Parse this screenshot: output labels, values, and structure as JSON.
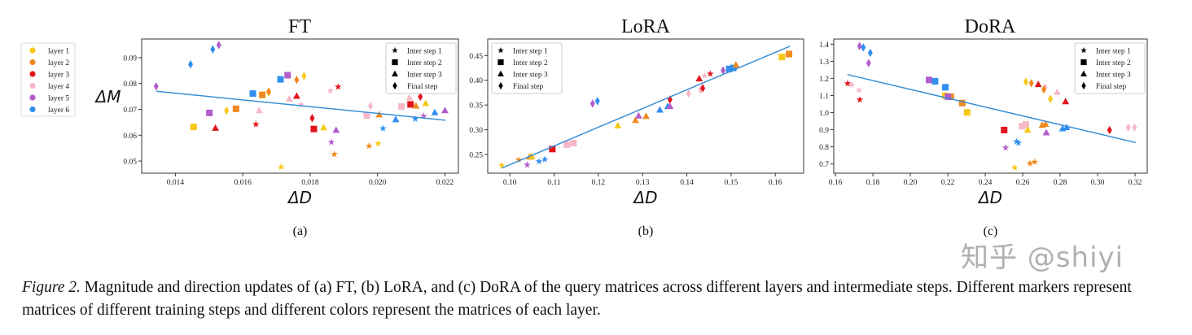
{
  "layer_legend": {
    "entries": [
      {
        "label": "layer 1",
        "color": "#f7c815"
      },
      {
        "label": "layer 2",
        "color": "#f08a1e"
      },
      {
        "label": "layer 3",
        "color": "#e0141c"
      },
      {
        "label": "layer 4",
        "color": "#f8b8c8"
      },
      {
        "label": "layer 5",
        "color": "#b35ccc"
      },
      {
        "label": "layer 6",
        "color": "#2f8ff0"
      }
    ]
  },
  "step_legend": {
    "entries": [
      {
        "label": "Inter step 1",
        "marker": "star"
      },
      {
        "label": "Inter step 2",
        "marker": "square"
      },
      {
        "label": "Inter step 3",
        "marker": "triangle"
      },
      {
        "label": "Final step",
        "marker": "diamond"
      }
    ]
  },
  "fit_line_color": "#3a8fd6",
  "chart_data": [
    {
      "type": "scatter",
      "title": "FT",
      "xlabel": "ΔD",
      "ylabel": "ΔM",
      "panel_label": "(a)",
      "xlim": [
        0.013,
        0.0224
      ],
      "ylim": [
        0.0453,
        0.0972
      ],
      "xticks": [
        "0.014",
        "0.016",
        "0.018",
        "0.020",
        "0.022"
      ],
      "yticks": [
        "0.05",
        "0.06",
        "0.07",
        "0.08",
        "0.09"
      ],
      "legend_placement": "top-right",
      "fit_line": [
        [
          0.01343,
          0.077
        ],
        [
          0.02202,
          0.0658
        ]
      ],
      "points": [
        [
          5,
          4,
          0.01343,
          0.0789
        ],
        [
          6,
          4,
          0.01445,
          0.0874
        ],
        [
          6,
          4,
          0.01511,
          0.0932
        ],
        [
          5,
          4,
          0.01529,
          0.0949
        ],
        [
          1,
          2,
          0.01454,
          0.0632
        ],
        [
          3,
          3,
          0.01519,
          0.0627
        ],
        [
          5,
          2,
          0.01501,
          0.0686
        ],
        [
          1,
          4,
          0.01552,
          0.0695
        ],
        [
          2,
          2,
          0.0158,
          0.0702
        ],
        [
          4,
          3,
          0.01649,
          0.0695
        ],
        [
          3,
          1,
          0.01639,
          0.0642
        ],
        [
          6,
          2,
          0.0163,
          0.0761
        ],
        [
          2,
          2,
          0.01658,
          0.0756
        ],
        [
          1,
          4,
          0.01677,
          0.0766
        ],
        [
          2,
          4,
          0.01677,
          0.0769
        ],
        [
          6,
          2,
          0.01712,
          0.0816
        ],
        [
          5,
          2,
          0.01733,
          0.0832
        ],
        [
          1,
          1,
          0.01714,
          0.0477
        ],
        [
          4,
          3,
          0.01738,
          0.074
        ],
        [
          2,
          4,
          0.0176,
          0.0814
        ],
        [
          1,
          4,
          0.01782,
          0.0829
        ],
        [
          3,
          3,
          0.0176,
          0.0751
        ],
        [
          4,
          1,
          0.01773,
          0.0718
        ],
        [
          3,
          4,
          0.01806,
          0.0666
        ],
        [
          3,
          2,
          0.01811,
          0.0624
        ],
        [
          1,
          3,
          0.0184,
          0.0629
        ],
        [
          5,
          3,
          0.01877,
          0.0619
        ],
        [
          5,
          1,
          0.01863,
          0.0573
        ],
        [
          2,
          1,
          0.01872,
          0.0526
        ],
        [
          4,
          1,
          0.0186,
          0.0772
        ],
        [
          3,
          1,
          0.01883,
          0.0787
        ],
        [
          4,
          2,
          0.01968,
          0.0676
        ],
        [
          4,
          4,
          0.01979,
          0.0713
        ],
        [
          2,
          1,
          0.01975,
          0.0558
        ],
        [
          1,
          1,
          0.02002,
          0.0568
        ],
        [
          2,
          3,
          0.02005,
          0.0679
        ],
        [
          6,
          1,
          0.02016,
          0.0626
        ],
        [
          6,
          3,
          0.02054,
          0.066
        ],
        [
          4,
          2,
          0.02071,
          0.0711
        ],
        [
          3,
          2,
          0.02098,
          0.0719
        ],
        [
          4,
          3,
          0.02095,
          0.0744
        ],
        [
          2,
          3,
          0.02114,
          0.0713
        ],
        [
          6,
          1,
          0.02112,
          0.0663
        ],
        [
          3,
          4,
          0.02127,
          0.0749
        ],
        [
          1,
          3,
          0.02143,
          0.0723
        ],
        [
          5,
          1,
          0.02137,
          0.0674
        ],
        [
          6,
          3,
          0.0217,
          0.0687
        ],
        [
          5,
          3,
          0.022,
          0.0695
        ]
      ]
    },
    {
      "type": "scatter",
      "title": "LoRA",
      "xlabel": "ΔD",
      "ylabel": "",
      "panel_label": "(b)",
      "xlim": [
        0.095,
        0.1664
      ],
      "ylim": [
        0.2122,
        0.4834
      ],
      "xticks": [
        "0.10",
        "0.11",
        "0.12",
        "0.13",
        "0.14",
        "0.15",
        "0.16"
      ],
      "yticks": [
        "0.25",
        "0.30",
        "0.35",
        "0.40",
        "0.45"
      ],
      "legend_placement": "top-left",
      "fit_line": [
        [
          0.0982,
          0.2225
        ],
        [
          0.1633,
          0.469
        ]
      ],
      "points": [
        [
          1,
          1,
          0.0982,
          0.228
        ],
        [
          2,
          1,
          0.102,
          0.239
        ],
        [
          2,
          3,
          0.1045,
          0.245
        ],
        [
          1,
          3,
          0.105,
          0.246
        ],
        [
          5,
          1,
          0.1039,
          0.229
        ],
        [
          6,
          1,
          0.1066,
          0.236
        ],
        [
          6,
          1,
          0.1079,
          0.24
        ],
        [
          3,
          2,
          0.1096,
          0.261
        ],
        [
          4,
          2,
          0.1129,
          0.27
        ],
        [
          4,
          2,
          0.1144,
          0.273
        ],
        [
          5,
          4,
          0.1187,
          0.353
        ],
        [
          6,
          4,
          0.1198,
          0.358
        ],
        [
          1,
          3,
          0.1244,
          0.308
        ],
        [
          2,
          3,
          0.1284,
          0.319
        ],
        [
          5,
          3,
          0.1291,
          0.328
        ],
        [
          2,
          3,
          0.1308,
          0.327
        ],
        [
          6,
          3,
          0.1339,
          0.34
        ],
        [
          6,
          3,
          0.1357,
          0.347
        ],
        [
          5,
          3,
          0.1362,
          0.347
        ],
        [
          3,
          4,
          0.1362,
          0.361
        ],
        [
          4,
          4,
          0.1404,
          0.373
        ],
        [
          4,
          4,
          0.1431,
          0.381
        ],
        [
          3,
          4,
          0.1436,
          0.384
        ],
        [
          3,
          3,
          0.1428,
          0.403
        ],
        [
          4,
          1,
          0.144,
          0.409
        ],
        [
          3,
          1,
          0.1453,
          0.413
        ],
        [
          5,
          4,
          0.1482,
          0.42
        ],
        [
          6,
          2,
          0.1496,
          0.423
        ],
        [
          6,
          2,
          0.1505,
          0.425
        ],
        [
          2,
          3,
          0.1511,
          0.431
        ],
        [
          1,
          2,
          0.1615,
          0.447
        ],
        [
          2,
          2,
          0.1631,
          0.453
        ]
      ]
    },
    {
      "type": "scatter",
      "title": "DoRA",
      "xlabel": "ΔD",
      "ylabel": "",
      "panel_label": "(c)",
      "xlim": [
        0.1591,
        0.3265
      ],
      "ylim": [
        0.646,
        1.43
      ],
      "xticks": [
        "0.16",
        "0.18",
        "0.20",
        "0.22",
        "0.24",
        "0.26",
        "0.28",
        "0.30",
        "0.32"
      ],
      "yticks": [
        "0.7",
        "0.8",
        "0.9",
        "1.0",
        "1.1",
        "1.2",
        "1.3",
        "1.4"
      ],
      "legend_placement": "top-right",
      "fit_line": [
        [
          0.1664,
          1.2225
        ],
        [
          0.3204,
          0.825
        ]
      ],
      "points": [
        [
          3,
          1,
          0.1665,
          1.17
        ],
        [
          4,
          1,
          0.1687,
          1.162
        ],
        [
          4,
          1,
          0.1726,
          1.131
        ],
        [
          3,
          1,
          0.173,
          1.075
        ],
        [
          5,
          4,
          0.1729,
          1.389
        ],
        [
          6,
          4,
          0.1749,
          1.381
        ],
        [
          6,
          4,
          0.1786,
          1.349
        ],
        [
          5,
          4,
          0.1777,
          1.289
        ],
        [
          5,
          2,
          0.21,
          1.191
        ],
        [
          6,
          2,
          0.2132,
          1.183
        ],
        [
          6,
          2,
          0.2187,
          1.148
        ],
        [
          1,
          2,
          0.2187,
          1.099
        ],
        [
          2,
          2,
          0.2216,
          1.093
        ],
        [
          5,
          2,
          0.2201,
          1.093
        ],
        [
          2,
          2,
          0.2277,
          1.056
        ],
        [
          1,
          2,
          0.2303,
          1.001
        ],
        [
          3,
          2,
          0.2501,
          0.898
        ],
        [
          4,
          2,
          0.2596,
          0.921
        ],
        [
          4,
          2,
          0.2617,
          0.932
        ],
        [
          1,
          3,
          0.2626,
          0.898
        ],
        [
          6,
          1,
          0.2567,
          0.831
        ],
        [
          6,
          1,
          0.2577,
          0.823
        ],
        [
          5,
          1,
          0.2509,
          0.795
        ],
        [
          1,
          1,
          0.2557,
          0.679
        ],
        [
          2,
          1,
          0.2639,
          0.703
        ],
        [
          2,
          1,
          0.2664,
          0.712
        ],
        [
          1,
          4,
          0.2617,
          1.18
        ],
        [
          2,
          4,
          0.2646,
          1.172
        ],
        [
          3,
          3,
          0.2683,
          1.164
        ],
        [
          4,
          4,
          0.2719,
          1.148
        ],
        [
          2,
          4,
          0.2713,
          1.135
        ],
        [
          4,
          3,
          0.2784,
          1.119
        ],
        [
          1,
          4,
          0.2748,
          1.08
        ],
        [
          3,
          3,
          0.2829,
          1.064
        ],
        [
          2,
          3,
          0.2704,
          0.926
        ],
        [
          2,
          3,
          0.2722,
          0.932
        ],
        [
          5,
          3,
          0.2726,
          0.882
        ],
        [
          6,
          3,
          0.2813,
          0.906
        ],
        [
          6,
          3,
          0.2835,
          0.913
        ],
        [
          3,
          4,
          0.3064,
          0.898
        ],
        [
          4,
          4,
          0.3164,
          0.913
        ],
        [
          4,
          4,
          0.3197,
          0.913
        ]
      ]
    }
  ],
  "caption": {
    "label": "Figure 2.",
    "text": " Magnitude and direction updates of (a) FT, (b) LoRA, and (c) DoRA of the query matrices across different layers and intermediate steps. Different markers represent matrices of different training steps and different colors represent the matrices of each layer."
  },
  "watermark": "知乎 @shiyi"
}
